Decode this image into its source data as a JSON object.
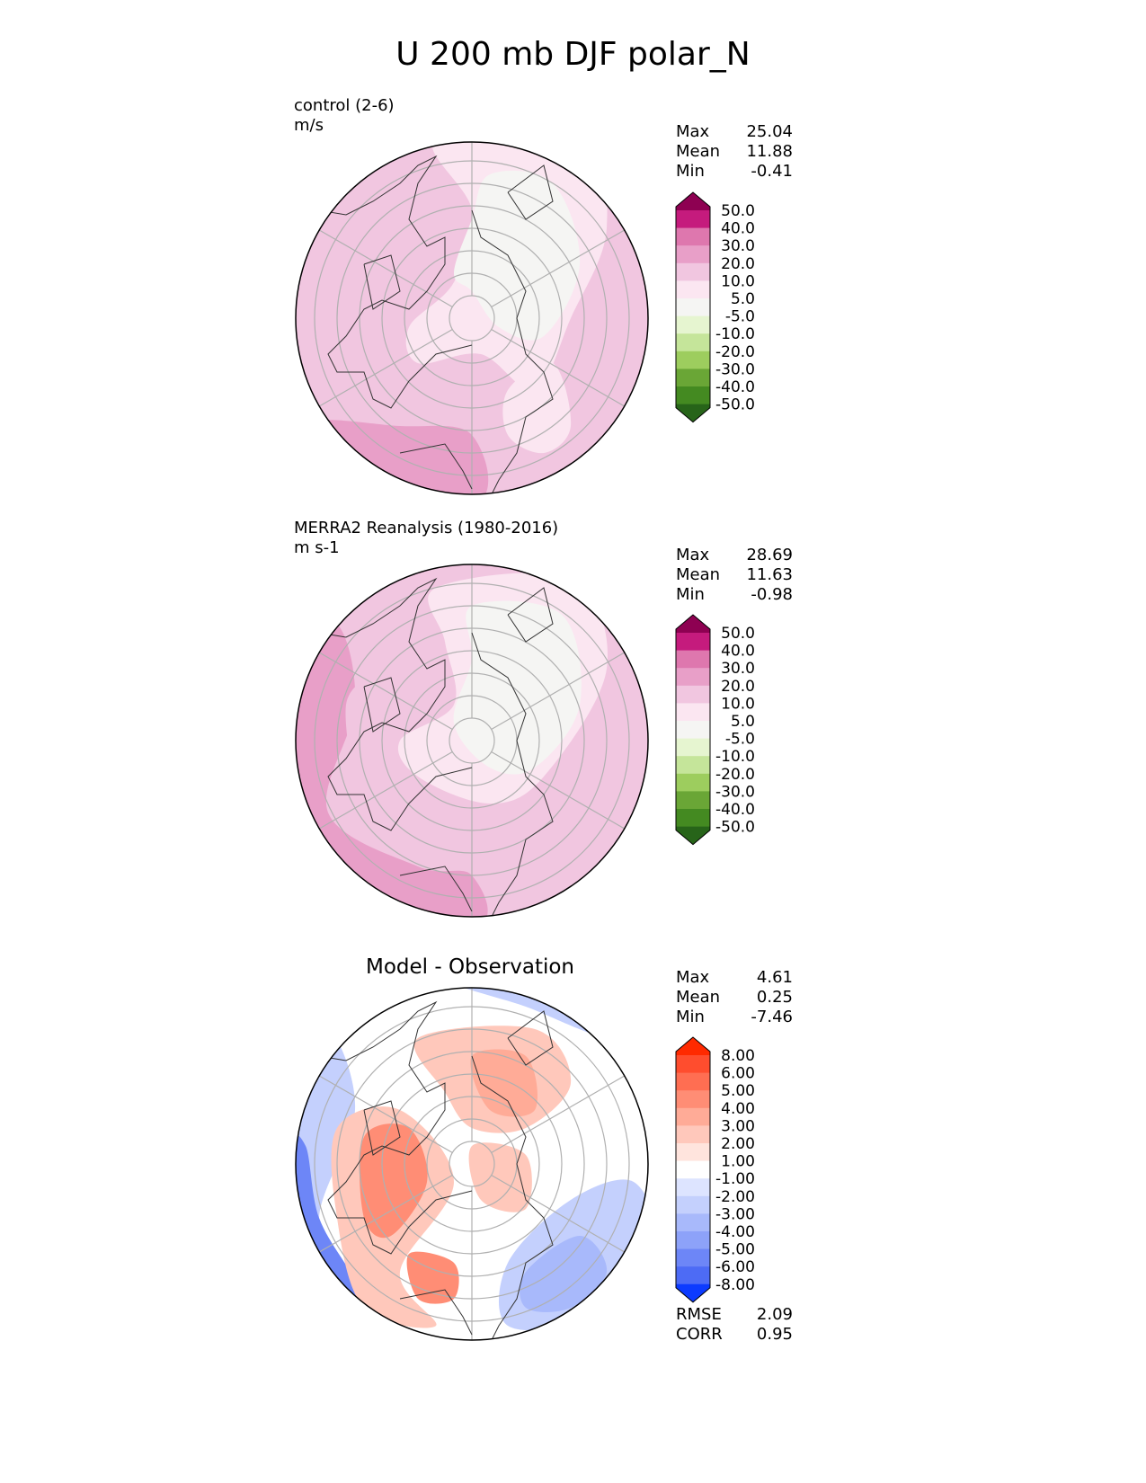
{
  "title": "U 200 mb DJF polar_N",
  "colors": {
    "outline": "#000000",
    "grid": "#b0b0b0",
    "coast": "#333333"
  },
  "panels": [
    {
      "name": "test",
      "label_line1": "control (2-6)",
      "label_line2": "m/s",
      "stats": [
        {
          "label": "Max",
          "value": "25.04"
        },
        {
          "label": "Mean",
          "value": "11.88"
        },
        {
          "label": "Min",
          "value": "-0.41"
        }
      ],
      "colorbar": {
        "labels": [
          "50.0",
          "40.0",
          "30.0",
          "20.0",
          "10.0",
          "5.0",
          "-5.0",
          "-10.0",
          "-20.0",
          "-30.0",
          "-40.0",
          "-50.0"
        ],
        "colors": [
          "#8e0152",
          "#c51b7d",
          "#de77ae",
          "#e89fc8",
          "#f1c6e0",
          "#fbe6f1",
          "#f5f5f3",
          "#e6f5d0",
          "#c5e59a",
          "#9dcd5e",
          "#6aa636",
          "#448a21",
          "#276419"
        ]
      }
    },
    {
      "name": "reference",
      "label_line1": "MERRA2 Reanalysis (1980-2016)",
      "label_line2": "m s-1",
      "stats": [
        {
          "label": "Max",
          "value": "28.69"
        },
        {
          "label": "Mean",
          "value": "11.63"
        },
        {
          "label": "Min",
          "value": "-0.98"
        }
      ],
      "colorbar": {
        "labels": [
          "50.0",
          "40.0",
          "30.0",
          "20.0",
          "10.0",
          "5.0",
          "-5.0",
          "-10.0",
          "-20.0",
          "-30.0",
          "-40.0",
          "-50.0"
        ],
        "colors": [
          "#8e0152",
          "#c51b7d",
          "#de77ae",
          "#e89fc8",
          "#f1c6e0",
          "#fbe6f1",
          "#f5f5f3",
          "#e6f5d0",
          "#c5e59a",
          "#9dcd5e",
          "#6aa636",
          "#448a21",
          "#276419"
        ]
      }
    },
    {
      "name": "diff",
      "center_title": "Model - Observation",
      "stats": [
        {
          "label": "Max",
          "value": "4.61"
        },
        {
          "label": "Mean",
          "value": "0.25"
        },
        {
          "label": "Min",
          "value": "-7.46"
        }
      ],
      "extra_stats": [
        {
          "label": "RMSE",
          "value": "2.09"
        },
        {
          "label": "CORR",
          "value": "0.95"
        }
      ],
      "colorbar": {
        "labels": [
          "8.00",
          "6.00",
          "5.00",
          "4.00",
          "3.00",
          "2.00",
          "1.00",
          "-1.00",
          "-2.00",
          "-3.00",
          "-4.00",
          "-5.00",
          "-6.00",
          "-8.00"
        ],
        "colors": [
          "#ff2a00",
          "#ff4d2e",
          "#ff6e52",
          "#ff8d75",
          "#ffab97",
          "#ffc8bb",
          "#ffe4dd",
          "#ffffff",
          "#dde4ff",
          "#c4d0fd",
          "#a8b9fb",
          "#8da2f9",
          "#6d86f7",
          "#4d6bf5",
          "#0c3bff"
        ]
      }
    }
  ]
}
